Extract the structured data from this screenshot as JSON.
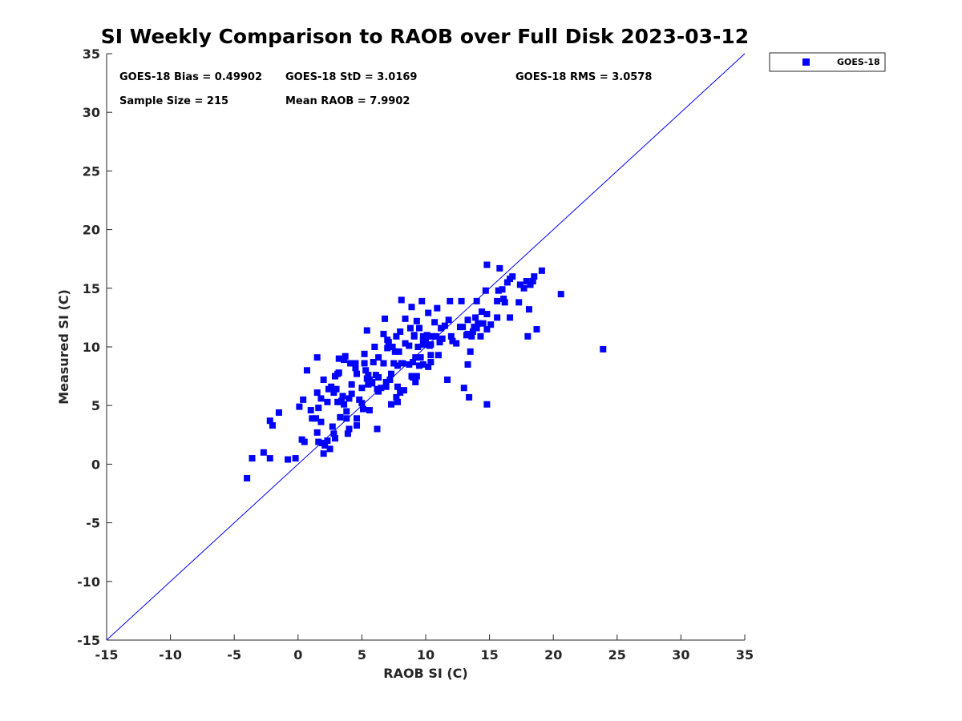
{
  "chart_data": {
    "type": "scatter",
    "title": "SI Weekly Comparison to RAOB over Full Disk 2023-03-12",
    "xlabel": "RAOB SI (C)",
    "ylabel": "Measured SI (C)",
    "xlim": [
      -15,
      35
    ],
    "ylim": [
      -15,
      35
    ],
    "xticks": [
      -15,
      -10,
      -5,
      0,
      5,
      10,
      15,
      20,
      25,
      30,
      35
    ],
    "yticks": [
      -15,
      -10,
      -5,
      0,
      5,
      10,
      15,
      20,
      25,
      30,
      35
    ],
    "grid": false,
    "legend": {
      "position": "top-right, outside plot",
      "entries": [
        "GOES-18"
      ]
    },
    "reference_line": {
      "type": "one-to-one",
      "from": [
        -15,
        -15
      ],
      "to": [
        35,
        35
      ],
      "color": "#0000ff"
    },
    "stats": [
      {
        "label": "GOES-18 Bias = 0.49902"
      },
      {
        "label": "GOES-18 StD = 3.0169"
      },
      {
        "label": "GOES-18 RMS = 3.0578"
      },
      {
        "label": "Sample Size = 215"
      },
      {
        "label": "Mean RAOB = 7.9902"
      }
    ],
    "series": [
      {
        "name": "GOES-18",
        "color": "#0000ff",
        "marker": "square",
        "points": [
          [
            -4,
            -1.2
          ],
          [
            -3.6,
            0.5
          ],
          [
            -2.7,
            1.0
          ],
          [
            -2.2,
            0.5
          ],
          [
            -2.2,
            3.7
          ],
          [
            -2.0,
            3.3
          ],
          [
            -1.5,
            4.4
          ],
          [
            -0.8,
            0.4
          ],
          [
            -0.2,
            0.5
          ],
          [
            0.1,
            4.9
          ],
          [
            0.3,
            2.1
          ],
          [
            0.4,
            5.5
          ],
          [
            0.5,
            1.9
          ],
          [
            0.7,
            8.0
          ],
          [
            1.0,
            4.6
          ],
          [
            1.1,
            3.9
          ],
          [
            1.4,
            3.9
          ],
          [
            1.5,
            2.7
          ],
          [
            1.5,
            6.1
          ],
          [
            1.5,
            9.1
          ],
          [
            1.6,
            4.8
          ],
          [
            1.6,
            1.9
          ],
          [
            1.8,
            3.6
          ],
          [
            1.8,
            5.6
          ],
          [
            1.9,
            1.8
          ],
          [
            2.0,
            0.9
          ],
          [
            2.0,
            7.2
          ],
          [
            2.1,
            1.6
          ],
          [
            2.3,
            2.0
          ],
          [
            2.3,
            5.3
          ],
          [
            2.4,
            6.4
          ],
          [
            2.5,
            1.3
          ],
          [
            2.6,
            6.6
          ],
          [
            2.7,
            3.2
          ],
          [
            2.8,
            6.1
          ],
          [
            2.8,
            2.6
          ],
          [
            2.9,
            2.2
          ],
          [
            2.9,
            7.5
          ],
          [
            3.0,
            6.4
          ],
          [
            3.1,
            7.7
          ],
          [
            3.1,
            5.3
          ],
          [
            3.2,
            9.0
          ],
          [
            3.2,
            7.8
          ],
          [
            3.3,
            4.0
          ],
          [
            3.4,
            5.4
          ],
          [
            3.5,
            5.8
          ],
          [
            3.6,
            8.9
          ],
          [
            3.6,
            5.1
          ],
          [
            3.7,
            9.2
          ],
          [
            3.8,
            3.9
          ],
          [
            3.8,
            4.5
          ],
          [
            3.9,
            2.6
          ],
          [
            4.0,
            3.0
          ],
          [
            4.0,
            5.6
          ],
          [
            4.1,
            8.6
          ],
          [
            4.2,
            6.8
          ],
          [
            4.2,
            6.0
          ],
          [
            4.5,
            8.2
          ],
          [
            4.5,
            8.6
          ],
          [
            4.6,
            7.7
          ],
          [
            4.6,
            3.3
          ],
          [
            4.6,
            3.9
          ],
          [
            4.8,
            5.5
          ],
          [
            5.0,
            5.2
          ],
          [
            5.0,
            6.5
          ],
          [
            5.1,
            4.7
          ],
          [
            5.2,
            9.4
          ],
          [
            5.2,
            8.6
          ],
          [
            5.3,
            8.0
          ],
          [
            5.4,
            11.4
          ],
          [
            5.4,
            7.3
          ],
          [
            5.5,
            7.6
          ],
          [
            5.5,
            6.8
          ],
          [
            5.6,
            7.2
          ],
          [
            5.6,
            4.6
          ],
          [
            5.8,
            7.0
          ],
          [
            5.8,
            6.9
          ],
          [
            5.9,
            8.7
          ],
          [
            6.0,
            10.0
          ],
          [
            6.1,
            7.6
          ],
          [
            6.2,
            6.4
          ],
          [
            6.2,
            3.0
          ],
          [
            6.3,
            9.1
          ],
          [
            6.3,
            7.4
          ],
          [
            6.3,
            6.2
          ],
          [
            6.5,
            6.5
          ],
          [
            6.7,
            8.6
          ],
          [
            6.7,
            11.1
          ],
          [
            6.8,
            12.4
          ],
          [
            6.9,
            7.0
          ],
          [
            6.9,
            6.6
          ],
          [
            7.0,
            9.9
          ],
          [
            7.0,
            10.6
          ],
          [
            7.1,
            10.4
          ],
          [
            7.2,
            7.2
          ],
          [
            7.3,
            7.7
          ],
          [
            7.3,
            5.1
          ],
          [
            7.4,
            10.0
          ],
          [
            7.5,
            8.6
          ],
          [
            7.6,
            9.6
          ],
          [
            7.7,
            10.9
          ],
          [
            7.7,
            5.7
          ],
          [
            7.8,
            5.3
          ],
          [
            7.8,
            6.6
          ],
          [
            7.8,
            8.4
          ],
          [
            7.9,
            9.6
          ],
          [
            8.0,
            11.3
          ],
          [
            8.0,
            6.1
          ],
          [
            8.1,
            14.0
          ],
          [
            8.1,
            8.6
          ],
          [
            8.2,
            8.6
          ],
          [
            8.3,
            6.3
          ],
          [
            8.4,
            12.4
          ],
          [
            8.4,
            10.3
          ],
          [
            8.7,
            10.1
          ],
          [
            8.7,
            8.5
          ],
          [
            8.8,
            11.6
          ],
          [
            8.9,
            13.4
          ],
          [
            8.9,
            7.5
          ],
          [
            9.0,
            7.4
          ],
          [
            9.0,
            8.7
          ],
          [
            9.1,
            10.9
          ],
          [
            9.1,
            11.0
          ],
          [
            9.2,
            7.0
          ],
          [
            9.2,
            9.1
          ],
          [
            9.3,
            12.2
          ],
          [
            9.3,
            7.5
          ],
          [
            9.4,
            10.0
          ],
          [
            9.5,
            11.6
          ],
          [
            9.5,
            8.4
          ],
          [
            9.6,
            9.1
          ],
          [
            9.7,
            13.9
          ],
          [
            9.8,
            8.5
          ],
          [
            9.8,
            10.9
          ],
          [
            9.8,
            10.5
          ],
          [
            9.9,
            10.2
          ],
          [
            10.0,
            10.6
          ],
          [
            10.1,
            11.0
          ],
          [
            10.2,
            12.9
          ],
          [
            10.2,
            8.3
          ],
          [
            10.2,
            10.9
          ],
          [
            10.3,
            10.1
          ],
          [
            10.4,
            8.7
          ],
          [
            10.4,
            9.3
          ],
          [
            10.4,
            10.2
          ],
          [
            10.5,
            10.9
          ],
          [
            10.7,
            12.1
          ],
          [
            10.8,
            10.9
          ],
          [
            10.9,
            13.3
          ],
          [
            11.0,
            9.3
          ],
          [
            11.1,
            10.4
          ],
          [
            11.2,
            11.6
          ],
          [
            11.3,
            10.7
          ],
          [
            11.5,
            11.8
          ],
          [
            11.7,
            7.2
          ],
          [
            11.8,
            12.3
          ],
          [
            11.9,
            13.9
          ],
          [
            12.0,
            10.9
          ],
          [
            12.1,
            10.5
          ],
          [
            12.4,
            10.3
          ],
          [
            12.7,
            11.7
          ],
          [
            12.8,
            13.9
          ],
          [
            12.9,
            11.7
          ],
          [
            13.0,
            6.5
          ],
          [
            13.2,
            11.0
          ],
          [
            13.3,
            11.1
          ],
          [
            13.3,
            12.3
          ],
          [
            13.3,
            8.5
          ],
          [
            13.4,
            5.7
          ],
          [
            13.5,
            9.6
          ],
          [
            13.6,
            10.9
          ],
          [
            13.7,
            11.3
          ],
          [
            13.8,
            11.7
          ],
          [
            13.9,
            12.5
          ],
          [
            14.0,
            11.6
          ],
          [
            14.0,
            13.9
          ],
          [
            14.1,
            12.0
          ],
          [
            14.3,
            10.9
          ],
          [
            14.4,
            13.0
          ],
          [
            14.5,
            12.0
          ],
          [
            14.7,
            14.8
          ],
          [
            14.8,
            17.0
          ],
          [
            14.8,
            11.5
          ],
          [
            14.8,
            5.1
          ],
          [
            14.8,
            12.8
          ],
          [
            15.1,
            11.9
          ],
          [
            15.6,
            12.5
          ],
          [
            15.6,
            13.9
          ],
          [
            15.7,
            14.8
          ],
          [
            15.8,
            16.7
          ],
          [
            16.0,
            14.9
          ],
          [
            16.1,
            14.1
          ],
          [
            16.2,
            13.8
          ],
          [
            16.4,
            15.5
          ],
          [
            16.6,
            12.5
          ],
          [
            16.6,
            15.8
          ],
          [
            16.8,
            16.0
          ],
          [
            17.3,
            13.8
          ],
          [
            17.4,
            15.3
          ],
          [
            17.7,
            15.0
          ],
          [
            17.9,
            15.6
          ],
          [
            18.0,
            10.9
          ],
          [
            18.1,
            13.2
          ],
          [
            18.2,
            15.3
          ],
          [
            18.4,
            15.6
          ],
          [
            18.5,
            16.0
          ],
          [
            18.7,
            11.5
          ],
          [
            19.1,
            16.5
          ],
          [
            20.6,
            14.5
          ],
          [
            23.9,
            9.8
          ]
        ]
      }
    ]
  }
}
